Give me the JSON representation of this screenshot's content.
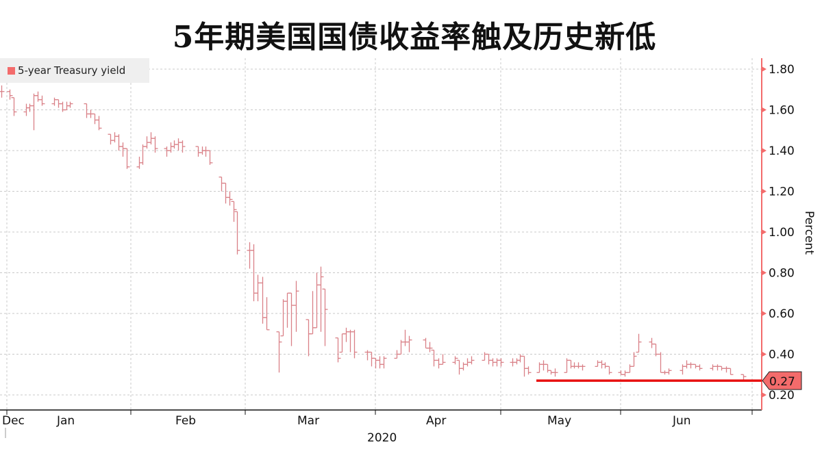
{
  "title": "5年期美国国债收益率触及历史新低",
  "chart_data": {
    "type": "ohlc-bar",
    "title": "5年期美国国债收益率触及历史新低",
    "ylabel": "Percent",
    "xlabel": "2020",
    "ylim": [
      0.16,
      1.86
    ],
    "y_ticks": [
      "0.20",
      "0.40",
      "0.60",
      "0.80",
      "1.00",
      "1.20",
      "1.40",
      "1.60",
      "1.80"
    ],
    "x_ticks": [
      "Dec",
      "Jan",
      "Feb",
      "Mar",
      "Apr",
      "May",
      "Jun"
    ],
    "grid": true,
    "legend": {
      "position": "top-left",
      "entries": [
        "5-year Treasury yield"
      ]
    },
    "series_color": "#f36b6b",
    "bar_color": "#d98087",
    "last_value": {
      "label": "0.27",
      "value": 0.27,
      "color": "#f36b6b"
    },
    "highlight_line": {
      "value": 0.27,
      "color": "#e81010"
    },
    "series": [
      {
        "name": "5-year Treasury yield",
        "bars_date_high_low_close": [
          [
            "2019-12-31",
            1.72,
            1.66,
            1.69
          ],
          [
            "2020-01-02",
            1.7,
            1.65,
            1.67
          ],
          [
            "2020-01-03",
            1.66,
            1.57,
            1.59
          ],
          [
            "2020-01-06",
            1.63,
            1.57,
            1.61
          ],
          [
            "2020-01-07",
            1.63,
            1.59,
            1.62
          ],
          [
            "2020-01-08",
            1.68,
            1.5,
            1.67
          ],
          [
            "2020-01-09",
            1.69,
            1.64,
            1.65
          ],
          [
            "2020-01-10",
            1.67,
            1.62,
            1.63
          ],
          [
            "2020-01-13",
            1.66,
            1.62,
            1.65
          ],
          [
            "2020-01-14",
            1.65,
            1.61,
            1.63
          ],
          [
            "2020-01-15",
            1.64,
            1.59,
            1.6
          ],
          [
            "2020-01-16",
            1.64,
            1.6,
            1.62
          ],
          [
            "2020-01-17",
            1.64,
            1.61,
            1.63
          ],
          [
            "2020-01-21",
            1.63,
            1.56,
            1.58
          ],
          [
            "2020-01-22",
            1.6,
            1.56,
            1.58
          ],
          [
            "2020-01-23",
            1.58,
            1.53,
            1.55
          ],
          [
            "2020-01-24",
            1.57,
            1.5,
            1.51
          ],
          [
            "2020-01-27",
            1.48,
            1.43,
            1.45
          ],
          [
            "2020-01-28",
            1.49,
            1.44,
            1.47
          ],
          [
            "2020-01-29",
            1.48,
            1.4,
            1.42
          ],
          [
            "2020-01-30",
            1.44,
            1.37,
            1.41
          ],
          [
            "2020-01-31",
            1.41,
            1.31,
            1.32
          ],
          [
            "2020-02-03",
            1.37,
            1.31,
            1.34
          ],
          [
            "2020-02-04",
            1.43,
            1.33,
            1.42
          ],
          [
            "2020-02-05",
            1.47,
            1.41,
            1.44
          ],
          [
            "2020-02-06",
            1.49,
            1.43,
            1.46
          ],
          [
            "2020-02-07",
            1.47,
            1.39,
            1.41
          ],
          [
            "2020-02-10",
            1.42,
            1.37,
            1.4
          ],
          [
            "2020-02-11",
            1.44,
            1.39,
            1.42
          ],
          [
            "2020-02-12",
            1.45,
            1.41,
            1.43
          ],
          [
            "2020-02-13",
            1.46,
            1.4,
            1.44
          ],
          [
            "2020-02-14",
            1.45,
            1.39,
            1.42
          ],
          [
            "2020-02-18",
            1.42,
            1.37,
            1.39
          ],
          [
            "2020-02-19",
            1.42,
            1.38,
            1.4
          ],
          [
            "2020-02-20",
            1.42,
            1.37,
            1.4
          ],
          [
            "2020-02-21",
            1.4,
            1.33,
            1.34
          ],
          [
            "2020-02-24",
            1.27,
            1.2,
            1.24
          ],
          [
            "2020-02-25",
            1.24,
            1.14,
            1.17
          ],
          [
            "2020-02-26",
            1.2,
            1.13,
            1.16
          ],
          [
            "2020-02-27",
            1.15,
            1.05,
            1.11
          ],
          [
            "2020-02-28",
            1.1,
            0.89,
            0.91
          ],
          [
            "2020-03-02",
            0.95,
            0.82,
            0.91
          ],
          [
            "2020-03-03",
            0.94,
            0.66,
            0.7
          ],
          [
            "2020-03-04",
            0.79,
            0.66,
            0.75
          ],
          [
            "2020-03-05",
            0.78,
            0.55,
            0.58
          ],
          [
            "2020-03-06",
            0.68,
            0.52,
            0.52
          ],
          [
            "2020-03-09",
            0.51,
            0.31,
            0.46
          ],
          [
            "2020-03-10",
            0.67,
            0.49,
            0.66
          ],
          [
            "2020-03-11",
            0.7,
            0.53,
            0.7
          ],
          [
            "2020-03-12",
            0.7,
            0.44,
            0.64
          ],
          [
            "2020-03-13",
            0.76,
            0.51,
            0.71
          ],
          [
            "2020-03-16",
            0.57,
            0.39,
            0.5
          ],
          [
            "2020-03-17",
            0.71,
            0.5,
            0.53
          ],
          [
            "2020-03-18",
            0.8,
            0.53,
            0.74
          ],
          [
            "2020-03-19",
            0.83,
            0.51,
            0.78
          ],
          [
            "2020-03-20",
            0.72,
            0.44,
            0.62
          ],
          [
            "2020-03-23",
            0.48,
            0.36,
            0.38
          ],
          [
            "2020-03-24",
            0.5,
            0.41,
            0.5
          ],
          [
            "2020-03-25",
            0.53,
            0.46,
            0.51
          ],
          [
            "2020-03-26",
            0.52,
            0.41,
            0.51
          ],
          [
            "2020-03-27",
            0.52,
            0.38,
            0.41
          ],
          [
            "2020-03-30",
            0.42,
            0.37,
            0.41
          ],
          [
            "2020-03-31",
            0.41,
            0.34,
            0.38
          ],
          [
            "2020-04-01",
            0.38,
            0.33,
            0.37
          ],
          [
            "2020-04-02",
            0.39,
            0.33,
            0.35
          ],
          [
            "2020-04-03",
            0.39,
            0.33,
            0.38
          ],
          [
            "2020-04-06",
            0.42,
            0.38,
            0.4
          ],
          [
            "2020-04-07",
            0.47,
            0.4,
            0.46
          ],
          [
            "2020-04-08",
            0.52,
            0.44,
            0.46
          ],
          [
            "2020-04-09",
            0.49,
            0.41,
            0.47
          ],
          [
            "2020-04-13",
            0.48,
            0.43,
            0.43
          ],
          [
            "2020-04-14",
            0.46,
            0.41,
            0.43
          ],
          [
            "2020-04-15",
            0.42,
            0.34,
            0.37
          ],
          [
            "2020-04-16",
            0.38,
            0.33,
            0.35
          ],
          [
            "2020-04-17",
            0.4,
            0.35,
            0.36
          ],
          [
            "2020-04-20",
            0.39,
            0.35,
            0.38
          ],
          [
            "2020-04-21",
            0.37,
            0.3,
            0.33
          ],
          [
            "2020-04-22",
            0.36,
            0.32,
            0.35
          ],
          [
            "2020-04-23",
            0.38,
            0.34,
            0.36
          ],
          [
            "2020-04-24",
            0.39,
            0.35,
            0.37
          ],
          [
            "2020-04-27",
            0.41,
            0.37,
            0.4
          ],
          [
            "2020-04-28",
            0.4,
            0.35,
            0.37
          ],
          [
            "2020-04-29",
            0.38,
            0.34,
            0.36
          ],
          [
            "2020-04-30",
            0.38,
            0.34,
            0.37
          ],
          [
            "2020-05-01",
            0.38,
            0.34,
            0.36
          ],
          [
            "2020-05-04",
            0.38,
            0.34,
            0.36
          ],
          [
            "2020-05-05",
            0.38,
            0.35,
            0.37
          ],
          [
            "2020-05-06",
            0.4,
            0.36,
            0.39
          ],
          [
            "2020-05-07",
            0.39,
            0.29,
            0.33
          ],
          [
            "2020-05-08",
            0.34,
            0.3,
            0.31
          ],
          [
            "2020-05-11",
            0.36,
            0.31,
            0.35
          ],
          [
            "2020-05-12",
            0.37,
            0.32,
            0.35
          ],
          [
            "2020-05-13",
            0.35,
            0.31,
            0.32
          ],
          [
            "2020-05-14",
            0.32,
            0.3,
            0.31
          ],
          [
            "2020-05-15",
            0.33,
            0.29,
            0.31
          ],
          [
            "2020-05-18",
            0.38,
            0.31,
            0.37
          ],
          [
            "2020-05-19",
            0.37,
            0.33,
            0.34
          ],
          [
            "2020-05-20",
            0.36,
            0.33,
            0.34
          ],
          [
            "2020-05-21",
            0.36,
            0.33,
            0.34
          ],
          [
            "2020-05-22",
            0.35,
            0.32,
            0.34
          ],
          [
            "2020-05-26",
            0.37,
            0.34,
            0.36
          ],
          [
            "2020-05-27",
            0.37,
            0.33,
            0.35
          ],
          [
            "2020-05-28",
            0.36,
            0.33,
            0.34
          ],
          [
            "2020-05-29",
            0.34,
            0.3,
            0.31
          ],
          [
            "2020-06-01",
            0.32,
            0.3,
            0.3
          ],
          [
            "2020-06-02",
            0.32,
            0.29,
            0.31
          ],
          [
            "2020-06-03",
            0.35,
            0.31,
            0.34
          ],
          [
            "2020-06-04",
            0.41,
            0.34,
            0.39
          ],
          [
            "2020-06-05",
            0.5,
            0.41,
            0.46
          ],
          [
            "2020-06-08",
            0.48,
            0.43,
            0.45
          ],
          [
            "2020-06-09",
            0.45,
            0.39,
            0.4
          ],
          [
            "2020-06-10",
            0.41,
            0.31,
            0.31
          ],
          [
            "2020-06-11",
            0.32,
            0.3,
            0.31
          ],
          [
            "2020-06-12",
            0.33,
            0.3,
            0.32
          ],
          [
            "2020-06-15",
            0.35,
            0.3,
            0.34
          ],
          [
            "2020-06-16",
            0.37,
            0.33,
            0.35
          ],
          [
            "2020-06-17",
            0.36,
            0.33,
            0.35
          ],
          [
            "2020-06-18",
            0.35,
            0.33,
            0.34
          ],
          [
            "2020-06-19",
            0.35,
            0.32,
            0.33
          ],
          [
            "2020-06-22",
            0.35,
            0.32,
            0.34
          ],
          [
            "2020-06-23",
            0.35,
            0.32,
            0.34
          ],
          [
            "2020-06-24",
            0.34,
            0.32,
            0.33
          ],
          [
            "2020-06-25",
            0.34,
            0.31,
            0.33
          ],
          [
            "2020-06-26",
            0.33,
            0.3,
            0.3
          ],
          [
            "2020-06-29",
            0.3,
            0.27,
            0.29
          ]
        ]
      }
    ]
  }
}
